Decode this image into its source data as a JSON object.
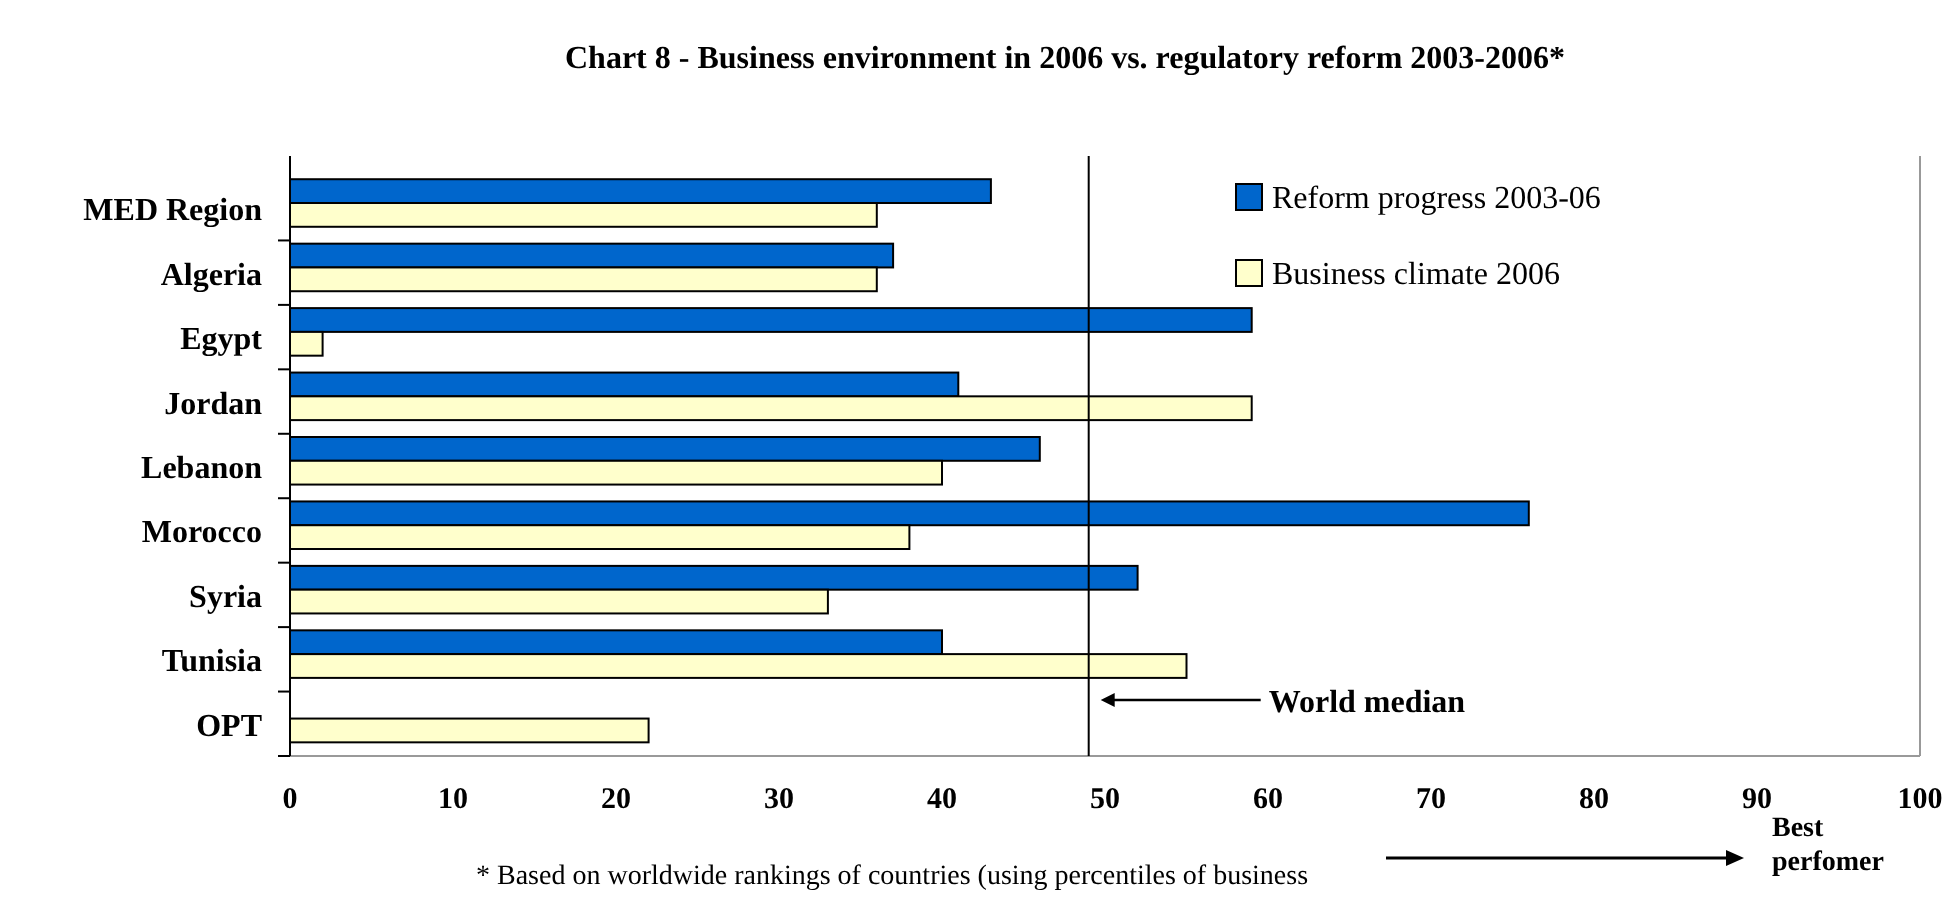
{
  "chart_data": {
    "type": "bar",
    "orientation": "horizontal",
    "title": "Chart 8 - Business environment in 2006 vs. regulatory reform 2003-2006*",
    "categories": [
      "MED Region",
      "Algeria",
      "Egypt",
      "Jordan",
      "Lebanon",
      "Morocco",
      "Syria",
      "Tunisia",
      "OPT"
    ],
    "series": [
      {
        "name": "Reform progress 2003-06",
        "color": "#0066cc",
        "values": [
          43,
          37,
          59,
          41,
          46,
          76,
          52,
          40,
          null
        ]
      },
      {
        "name": "Business climate 2006",
        "color": "#ffffcc",
        "values": [
          36,
          36,
          2,
          59,
          40,
          38,
          33,
          55,
          22
        ]
      }
    ],
    "xlim": [
      0,
      100
    ],
    "xticks": [
      0,
      10,
      20,
      30,
      40,
      50,
      60,
      70,
      80,
      90,
      100
    ],
    "ref_lines": [
      {
        "axis": "x",
        "value": 49,
        "label": "World median"
      }
    ],
    "legend": "top right",
    "grid": false,
    "annotations": [
      "Best perfomer",
      "* Based on worldwide rankings of countries (using percentiles of business"
    ]
  }
}
